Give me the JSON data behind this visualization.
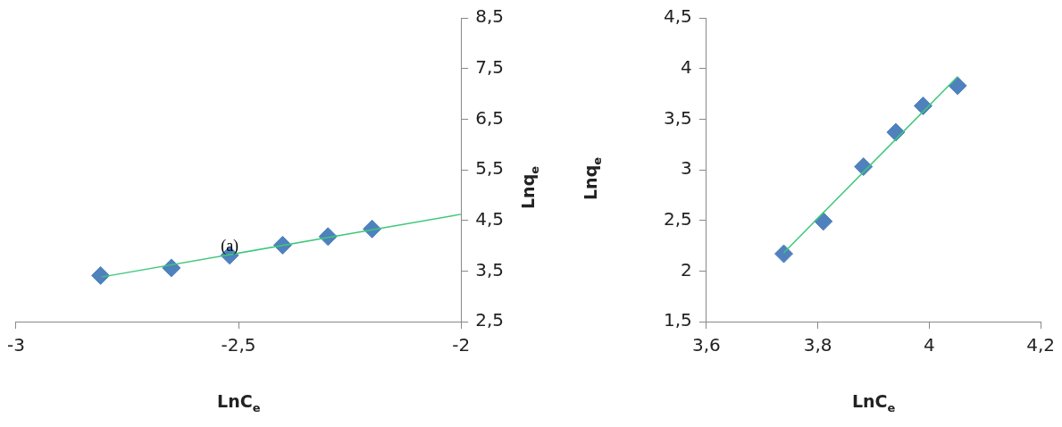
{
  "chart_data": [
    {
      "type": "scatter",
      "xlabel": "LnC$_{e}$",
      "ylabel": "Lnq$_{e}$",
      "annotations": [
        "(a)"
      ],
      "grid": false,
      "xlim": [
        -3,
        -2
      ],
      "xticks": [
        -3,
        {
          "value": -2.5,
          "label": "-2,5"
        },
        -2
      ],
      "ylim": [
        2.5,
        8.5
      ],
      "yticks": [
        {
          "value": 2.5,
          "label": "2,5"
        },
        {
          "value": 3.5,
          "label": "3,5"
        },
        {
          "value": 4.5,
          "label": "4,5"
        },
        {
          "value": 5.5,
          "label": "5,5"
        },
        {
          "value": 6.5,
          "label": "6,5"
        },
        {
          "value": 7.5,
          "label": "7,5"
        },
        {
          "value": 8.5,
          "label": "8,5"
        }
      ],
      "series": [
        {
          "type": "scatter",
          "marker": "diamond",
          "color": "#4f81bd",
          "x": [
            -2.81,
            -2.651,
            -2.52,
            -2.401,
            -2.299,
            -2.2
          ],
          "values": [
            3.41,
            3.56,
            3.81,
            4.01,
            4.18,
            4.33
          ]
        },
        {
          "type": "line",
          "color": "#3ec87a",
          "x": [
            -2.808,
            -2
          ],
          "values": [
            3.38,
            4.62
          ]
        }
      ]
    },
    {
      "type": "scatter",
      "xlabel": "LnC$_{e}$",
      "ylabel": "Lnq$_{e}$",
      "grid": false,
      "xlim": [
        3.6,
        4.2
      ],
      "xticks": [
        {
          "value": 3.6,
          "label": "3,6"
        },
        {
          "value": 3.8,
          "label": "3,8"
        },
        4,
        {
          "value": 4.2,
          "label": "4,2"
        }
      ],
      "ylim": [
        1.5,
        4.5
      ],
      "yticks": [
        {
          "value": 1.5,
          "label": "1,5"
        },
        2,
        {
          "value": 2.5,
          "label": "2,5"
        },
        3,
        {
          "value": 3.5,
          "label": "3,5"
        },
        4,
        {
          "value": 4.5,
          "label": "4,5"
        }
      ],
      "series": [
        {
          "type": "scatter",
          "marker": "diamond",
          "color": "#4f81bd",
          "x": [
            3.739,
            3.81,
            3.882,
            3.94,
            3.989,
            4.051
          ],
          "values": [
            2.17,
            2.49,
            3.03,
            3.37,
            3.63,
            3.83
          ]
        },
        {
          "type": "line",
          "color": "#3ec87a",
          "x": [
            3.739,
            4.051
          ],
          "values": [
            2.18,
            3.92
          ]
        }
      ]
    }
  ]
}
